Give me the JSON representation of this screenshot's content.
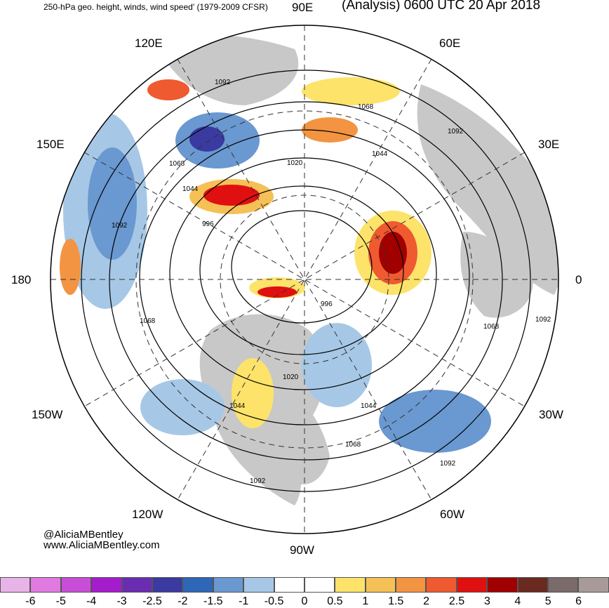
{
  "header": {
    "left_title": "250-hPa geo. height, winds, wind speed' (1979-2009 CFSR)",
    "right_title": "(Analysis) 0600 UTC 20 Apr 2018"
  },
  "map": {
    "projection": "north polar stereographic",
    "longitude_labels": {
      "90E": "90E",
      "60E": "60E",
      "30E": "30E",
      "0": "0",
      "30W": "30W",
      "60W": "60W",
      "90W": "90W",
      "120W": "120W",
      "150W": "150W",
      "180": "180",
      "150E": "150E",
      "120E": "120E"
    },
    "contour_labels": [
      "1092",
      "1068",
      "1092",
      "1068",
      "1044",
      "1020",
      "1044",
      "996",
      "1092",
      "1068",
      "996",
      "1068",
      "1092",
      "1020",
      "1044",
      "1044",
      "1068",
      "1092",
      "1092"
    ],
    "land_color": "#c8c8c8",
    "ocean_color": "#ffffff",
    "contour_color": "#000000"
  },
  "credits": {
    "handle": "@AliciaMBentley",
    "website": "www.AliciaMBentley.com"
  },
  "colorbar": {
    "ticks": [
      "-6",
      "-5",
      "-4",
      "-3",
      "-2.5",
      "-2",
      "-1.5",
      "-1",
      "-0.5",
      "0",
      "0.5",
      "1",
      "1.5",
      "2",
      "2.5",
      "3",
      "4",
      "5",
      "6"
    ],
    "colors": [
      "#e8b4e8",
      "#e07ae0",
      "#c84ed8",
      "#a41ccc",
      "#6a2cb0",
      "#3a3aa0",
      "#2e66b8",
      "#6a98d0",
      "#a6c8e6",
      "#ffffff",
      "#ffffff",
      "#fde36a",
      "#f5c056",
      "#f29442",
      "#ef5a30",
      "#e01010",
      "#a00000",
      "#6a2a20",
      "#7a6a6a",
      "#a89a98"
    ]
  }
}
